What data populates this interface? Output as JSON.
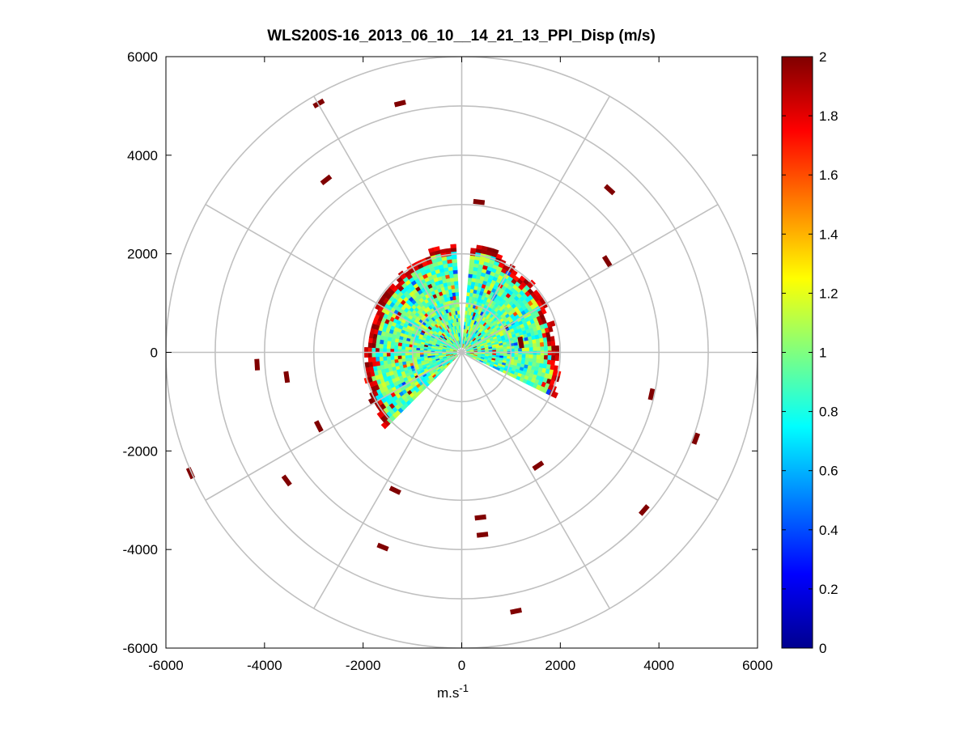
{
  "chart_data": {
    "type": "heatmap",
    "subtype": "polar-ppi",
    "title": "WLS200S-16_2013_06_10__14_21_13_PPI_Disp (m/s)",
    "xlabel": "m.s",
    "xlabel_superscript": "-1",
    "ylabel": "",
    "xlim": [
      -6000,
      6000
    ],
    "ylim": [
      -6000,
      6000
    ],
    "x_ticks": [
      "-6000",
      "-4000",
      "-2000",
      "0",
      "2000",
      "4000",
      "6000"
    ],
    "y_ticks": [
      "6000",
      "4000",
      "2000",
      "0",
      "-2000",
      "-4000",
      "-6000"
    ],
    "x_tick_values": [
      -6000,
      -4000,
      -2000,
      0,
      2000,
      4000,
      6000
    ],
    "y_tick_values": [
      6000,
      4000,
      2000,
      0,
      -2000,
      -4000,
      -6000
    ],
    "range_rings_m": [
      1000,
      2000,
      3000,
      4000,
      5000,
      6000
    ],
    "spoke_angles_deg": [
      0,
      30,
      60,
      90,
      120,
      150,
      180,
      210,
      240,
      270,
      300,
      330
    ],
    "grid": true,
    "colormap": "jet",
    "colorbar": {
      "label_values": [
        0,
        0.2,
        0.4,
        0.6,
        0.8,
        1,
        1.2,
        1.4,
        1.6,
        1.8,
        2
      ],
      "labels": [
        "0",
        "0.2",
        "0.4",
        "0.6",
        "0.8",
        "1",
        "1.2",
        "1.4",
        "1.6",
        "1.8",
        "2"
      ],
      "clim": [
        0,
        2
      ],
      "placement": "right"
    },
    "data_coverage": {
      "dense_region_range_m": [
        100,
        2300
      ],
      "typical_value": 0.95,
      "edge_value": 2.0,
      "scan_sectors_deg": [
        [
          -135,
          -5
        ],
        [
          5,
          115
        ]
      ],
      "missing_sectors_deg": [
        [
          -5,
          5
        ],
        [
          115,
          225
        ]
      ]
    },
    "isolated_returns": [
      {
        "x": -2900,
        "y": 5050,
        "value": 2
      },
      {
        "x": -1250,
        "y": 5050,
        "value": 2
      },
      {
        "x": -2750,
        "y": 3500,
        "value": 2
      },
      {
        "x": 350,
        "y": 3050,
        "value": 2
      },
      {
        "x": 3000,
        "y": 3300,
        "value": 2
      },
      {
        "x": 2950,
        "y": 1850,
        "value": 2
      },
      {
        "x": -4150,
        "y": -250,
        "value": 2
      },
      {
        "x": -3550,
        "y": -500,
        "value": 2
      },
      {
        "x": -2900,
        "y": -1500,
        "value": 2
      },
      {
        "x": -5500,
        "y": -2450,
        "value": 2
      },
      {
        "x": -3550,
        "y": -2600,
        "value": 2
      },
      {
        "x": -1350,
        "y": -2800,
        "value": 2
      },
      {
        "x": -1600,
        "y": -3950,
        "value": 2
      },
      {
        "x": 380,
        "y": -3350,
        "value": 2
      },
      {
        "x": 420,
        "y": -3700,
        "value": 2
      },
      {
        "x": 1100,
        "y": -5250,
        "value": 2
      },
      {
        "x": 3700,
        "y": -3200,
        "value": 2
      },
      {
        "x": 3850,
        "y": -850,
        "value": 2
      },
      {
        "x": 4750,
        "y": -1750,
        "value": 2
      },
      {
        "x": 1550,
        "y": -2300,
        "value": 2
      },
      {
        "x": 1200,
        "y": 200,
        "value": 2
      }
    ]
  }
}
